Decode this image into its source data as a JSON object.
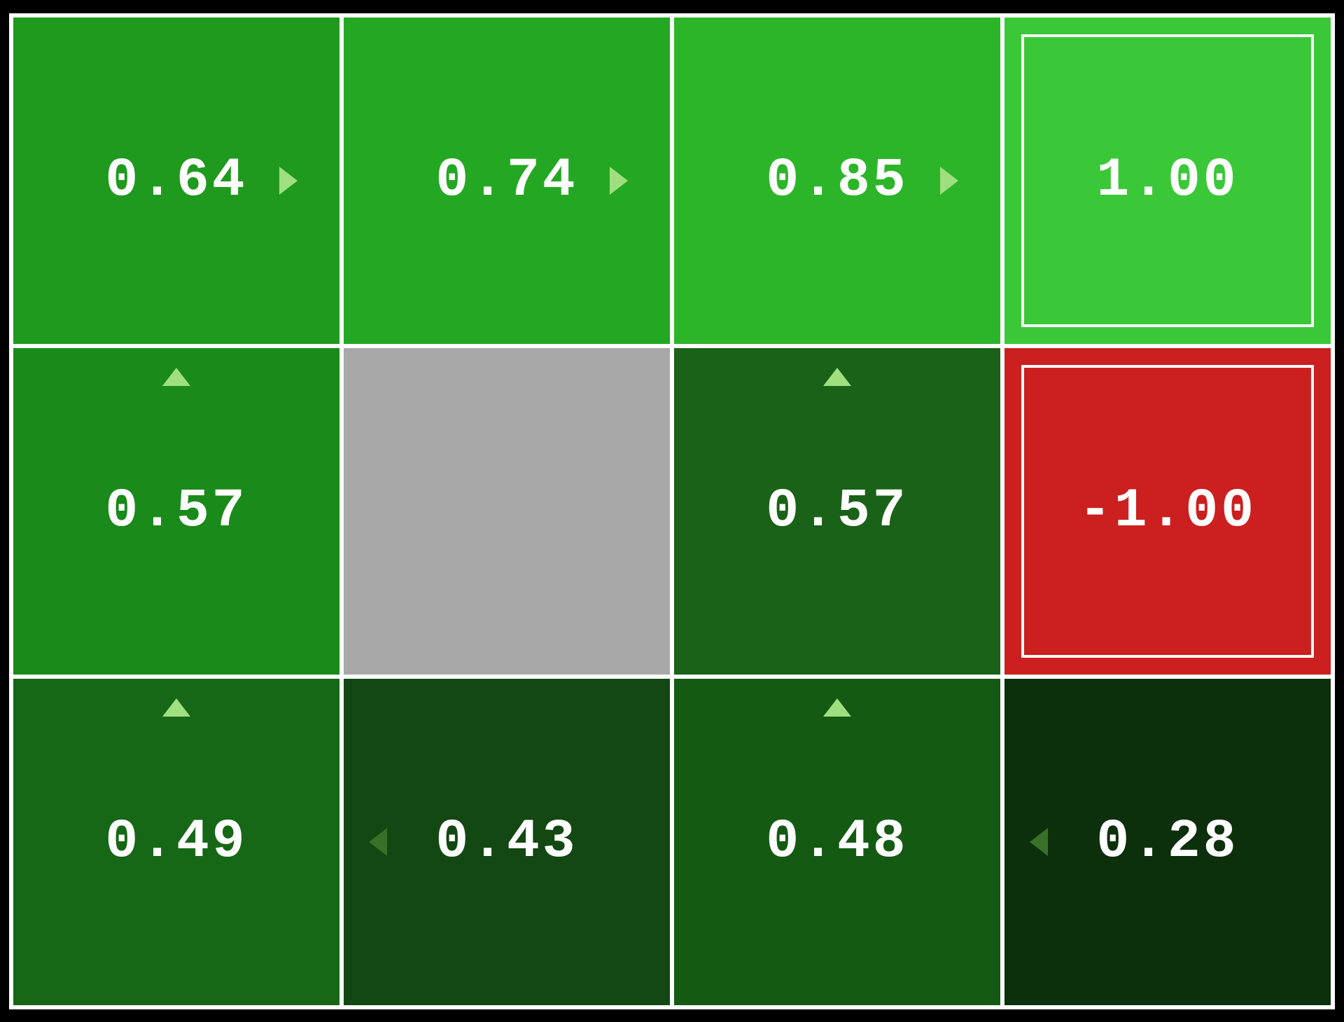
{
  "gridworld": {
    "type": "heatmap",
    "rows": 3,
    "cols": 4,
    "background_color": "#000000",
    "grid_line_color": "#ffffff",
    "grid_line_width": 6,
    "font_family": "Courier New",
    "value_fontsize": 78,
    "value_color": "#ffffff",
    "arrow_color_light": "#a0df80",
    "arrow_color_dark": "#3a7028",
    "arrow_size": 26,
    "terminal_inner_border_color": "#ffffff",
    "terminal_inner_border_width": 4,
    "terminal_inner_inset": 24,
    "cells": [
      [
        {
          "value": "0.64",
          "bg_color": "#1f9a1e",
          "arrow": "right",
          "arrow_color": "#a0df80"
        },
        {
          "value": "0.74",
          "bg_color": "#24a823",
          "arrow": "right",
          "arrow_color": "#a0df80"
        },
        {
          "value": "0.85",
          "bg_color": "#2db52a",
          "arrow": "right",
          "arrow_color": "#a0df80"
        },
        {
          "value": "1.00",
          "bg_color": "#3bc838",
          "terminal": true
        }
      ],
      [
        {
          "value": "0.57",
          "bg_color": "#1a8a1b",
          "arrow": "up",
          "arrow_color": "#a0df80"
        },
        {
          "value": "",
          "bg_color": "#a8a8a8",
          "wall": true
        },
        {
          "value": "0.57",
          "bg_color": "#1a6218",
          "arrow": "up",
          "arrow_color": "#a0df80"
        },
        {
          "value": "-1.00",
          "bg_color": "#cc1f1f",
          "terminal": true
        }
      ],
      [
        {
          "value": "0.49",
          "bg_color": "#166816",
          "arrow": "up",
          "arrow_color": "#a0df80"
        },
        {
          "value": "0.43",
          "bg_color": "#134812",
          "arrow": "left",
          "arrow_color": "#3a7028"
        },
        {
          "value": "0.48",
          "bg_color": "#145a13",
          "arrow": "up",
          "arrow_color": "#a0df80"
        },
        {
          "value": "0.28",
          "bg_color": "#0d300c",
          "arrow": "left",
          "arrow_color": "#3a7028"
        }
      ]
    ]
  }
}
